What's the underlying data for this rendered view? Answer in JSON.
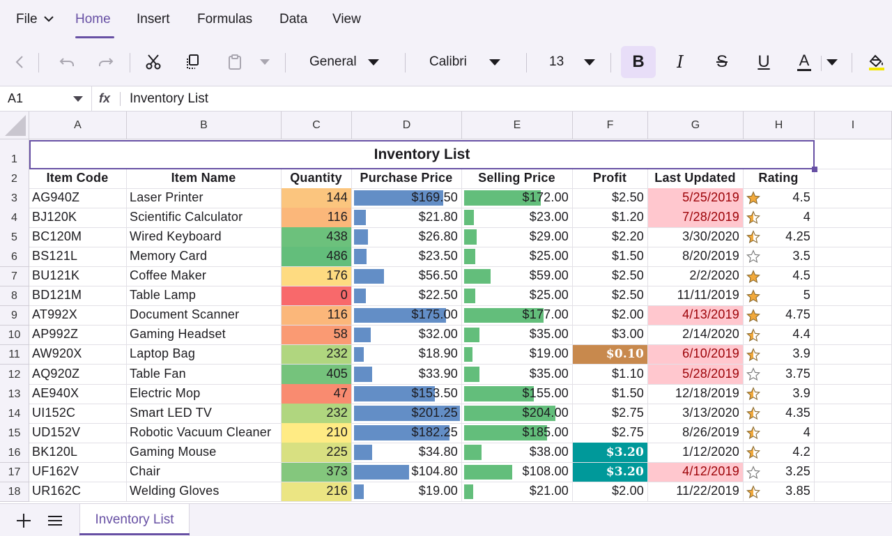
{
  "menu": {
    "file": "File",
    "tabs": [
      "Home",
      "Insert",
      "Formulas",
      "Data",
      "View"
    ],
    "active_tab": "Home"
  },
  "ribbon": {
    "number_format": "General",
    "font_name": "Calibri",
    "font_size": "13",
    "bold": "B",
    "italic": "I",
    "strike": "S",
    "underline": "U",
    "font_color": "A",
    "fill_color_bar": "#f2e600",
    "icons": [
      "chevron-left-icon",
      "undo-icon",
      "redo-icon",
      "cut-icon",
      "copy-icon",
      "paste-icon",
      "dropdown-icon",
      "fill-color-icon"
    ]
  },
  "formula_bar": {
    "cell_ref": "A1",
    "fx": "fx",
    "value": "Inventory List"
  },
  "columns": [
    "A",
    "B",
    "C",
    "D",
    "E",
    "F",
    "G",
    "H",
    "I"
  ],
  "rows": [
    "1",
    "2",
    "3",
    "4",
    "5",
    "6",
    "7",
    "8",
    "9",
    "10",
    "11",
    "12",
    "13",
    "14",
    "15",
    "16",
    "17",
    "18"
  ],
  "sheet": {
    "title": "Inventory List",
    "headers": [
      "Item Code",
      "Item Name",
      "Quantity",
      "Purchase Price",
      "Selling Price",
      "Profit",
      "Last Updated",
      "Rating"
    ],
    "data": [
      {
        "code": "AG940Z",
        "name": "Laser Printer",
        "qty": "144",
        "purchase": "$169.50",
        "selling": "$172.00",
        "profit": "$2.50",
        "updated": "5/25/2019",
        "rating": "4.5",
        "p_frac": 0.84,
        "s_frac": 0.84,
        "qty_color": "#fbc57e",
        "date_hl": true,
        "profit_hl": "",
        "star": "full"
      },
      {
        "code": "BJ120K",
        "name": "Scientific Calculator",
        "qty": "116",
        "purchase": "$21.80",
        "selling": "$23.00",
        "profit": "$1.20",
        "updated": "7/28/2019",
        "rating": "4",
        "p_frac": 0.11,
        "s_frac": 0.11,
        "qty_color": "#fbb77a",
        "date_hl": true,
        "profit_hl": "",
        "star": "half"
      },
      {
        "code": "BC120M",
        "name": "Wired Keyboard",
        "qty": "438",
        "purchase": "$26.80",
        "selling": "$29.00",
        "profit": "$2.20",
        "updated": "3/30/2020",
        "rating": "4.25",
        "p_frac": 0.13,
        "s_frac": 0.14,
        "qty_color": "#6cc17c",
        "date_hl": false,
        "profit_hl": "",
        "star": "half"
      },
      {
        "code": "BS121L",
        "name": "Memory Card",
        "qty": "486",
        "purchase": "$23.50",
        "selling": "$25.00",
        "profit": "$1.50",
        "updated": "8/20/2019",
        "rating": "3.5",
        "p_frac": 0.12,
        "s_frac": 0.12,
        "qty_color": "#63be7b",
        "date_hl": false,
        "profit_hl": "",
        "star": "empty"
      },
      {
        "code": "BU121K",
        "name": "Coffee Maker",
        "qty": "176",
        "purchase": "$56.50",
        "selling": "$59.00",
        "profit": "$2.50",
        "updated": "2/2/2020",
        "rating": "4.5",
        "p_frac": 0.28,
        "s_frac": 0.29,
        "qty_color": "#fedb81",
        "date_hl": false,
        "profit_hl": "",
        "star": "full"
      },
      {
        "code": "BD121M",
        "name": "Table Lamp",
        "qty": "0",
        "purchase": "$22.50",
        "selling": "$25.00",
        "profit": "$2.50",
        "updated": "11/11/2019",
        "rating": "5",
        "p_frac": 0.11,
        "s_frac": 0.12,
        "qty_color": "#f8696b",
        "date_hl": false,
        "profit_hl": "",
        "star": "full"
      },
      {
        "code": "AT992X",
        "name": "Document Scanner",
        "qty": "116",
        "purchase": "$175.00",
        "selling": "$177.00",
        "profit": "$2.00",
        "updated": "4/13/2019",
        "rating": "4.75",
        "p_frac": 0.87,
        "s_frac": 0.87,
        "qty_color": "#fbb77a",
        "date_hl": true,
        "profit_hl": "",
        "star": "full"
      },
      {
        "code": "AP992Z",
        "name": "Gaming Headset",
        "qty": "58",
        "purchase": "$32.00",
        "selling": "$35.00",
        "profit": "$3.00",
        "updated": "2/14/2020",
        "rating": "4.4",
        "p_frac": 0.16,
        "s_frac": 0.17,
        "qty_color": "#fa9a73",
        "date_hl": false,
        "profit_hl": "",
        "star": "half"
      },
      {
        "code": "AW920X",
        "name": "Laptop Bag",
        "qty": "232",
        "purchase": "$18.90",
        "selling": "$19.00",
        "profit": "$0.10",
        "updated": "6/10/2019",
        "rating": "3.9",
        "p_frac": 0.09,
        "s_frac": 0.09,
        "qty_color": "#b0d67f",
        "date_hl": true,
        "profit_hl": "#c8894d",
        "star": "half"
      },
      {
        "code": "AQ920Z",
        "name": "Table Fan",
        "qty": "405",
        "purchase": "$33.90",
        "selling": "$35.00",
        "profit": "$1.10",
        "updated": "5/28/2019",
        "rating": "3.75",
        "p_frac": 0.17,
        "s_frac": 0.17,
        "qty_color": "#75c37c",
        "date_hl": true,
        "profit_hl": "",
        "star": "empty"
      },
      {
        "code": "AE940X",
        "name": "Electric Mop",
        "qty": "47",
        "purchase": "$153.50",
        "selling": "$155.00",
        "profit": "$1.50",
        "updated": "12/18/2019",
        "rating": "3.9",
        "p_frac": 0.76,
        "s_frac": 0.76,
        "qty_color": "#f98b70",
        "date_hl": false,
        "profit_hl": "",
        "star": "half"
      },
      {
        "code": "UI152C",
        "name": "Smart LED TV",
        "qty": "232",
        "purchase": "$201.25",
        "selling": "$204.00",
        "profit": "$2.75",
        "updated": "3/13/2020",
        "rating": "4.35",
        "p_frac": 1.0,
        "s_frac": 1.0,
        "qty_color": "#b0d67f",
        "date_hl": false,
        "profit_hl": "",
        "star": "half"
      },
      {
        "code": "UD152V",
        "name": "Robotic Vacuum Cleaner",
        "qty": "210",
        "purchase": "$182.25",
        "selling": "$185.00",
        "profit": "$2.75",
        "updated": "8/26/2019",
        "rating": "4",
        "p_frac": 0.9,
        "s_frac": 0.91,
        "qty_color": "#ffeb84",
        "date_hl": false,
        "profit_hl": "",
        "star": "half"
      },
      {
        "code": "BK120L",
        "name": "Gaming Mouse",
        "qty": "225",
        "purchase": "$34.80",
        "selling": "$38.00",
        "profit": "$3.20",
        "updated": "1/12/2020",
        "rating": "4.2",
        "p_frac": 0.17,
        "s_frac": 0.19,
        "qty_color": "#d8e081",
        "date_hl": false,
        "profit_hl": "#00999a",
        "star": "half"
      },
      {
        "code": "UF162V",
        "name": "Chair",
        "qty": "373",
        "purchase": "$104.80",
        "selling": "$108.00",
        "profit": "$3.20",
        "updated": "4/12/2019",
        "rating": "3.25",
        "p_frac": 0.52,
        "s_frac": 0.53,
        "qty_color": "#84c77d",
        "date_hl": true,
        "profit_hl": "#00999a",
        "star": "empty"
      },
      {
        "code": "UR162C",
        "name": "Welding Gloves",
        "qty": "216",
        "purchase": "$19.00",
        "selling": "$21.00",
        "profit": "$2.00",
        "updated": "11/22/2019",
        "rating": "3.85",
        "p_frac": 0.09,
        "s_frac": 0.1,
        "qty_color": "#ebe583",
        "date_hl": false,
        "profit_hl": "",
        "star": "half"
      }
    ]
  },
  "colors": {
    "accent": "#6750a4",
    "purchase_bar": "#638ec6",
    "selling_bar": "#63be7b",
    "date_highlight_bg": "#ffc7ce",
    "date_highlight_text": "#9c0006",
    "star_fill": "#f2a93b"
  },
  "tabs": {
    "add_icon": "add-sheet-icon",
    "list_icon": "sheet-list-icon",
    "sheets": [
      "Inventory List"
    ]
  }
}
